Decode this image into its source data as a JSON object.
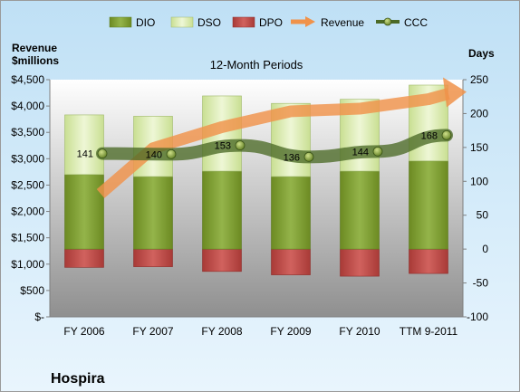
{
  "company_label": "Hospira",
  "chart_data": {
    "type": "bar",
    "title": "12-Month Periods",
    "left_axis_label": "Revenue\n$millions",
    "right_axis_label": "Days",
    "categories": [
      "FY 2006",
      "FY 2007",
      "FY 2008",
      "FY 2009",
      "FY 2010",
      "TTM 9-2011"
    ],
    "left_axis": {
      "min": 0,
      "max": 4500,
      "step": 500,
      "tick_labels": [
        "$-",
        "$500",
        "$1,000",
        "$1,500",
        "$2,000",
        "$2,500",
        "$3,000",
        "$3,500",
        "$4,000",
        "$4,500"
      ]
    },
    "right_axis": {
      "min": -100,
      "max": 250,
      "step": 50,
      "tick_labels": [
        "-100",
        "-50",
        "0",
        "50",
        "100",
        "150",
        "200",
        "250"
      ]
    },
    "series": [
      {
        "name": "DIO",
        "axis": "days",
        "kind": "bar",
        "color": "#7a9a2c",
        "values": [
          110,
          107,
          115,
          107,
          115,
          130
        ]
      },
      {
        "name": "DSO",
        "axis": "days",
        "kind": "bar-stacked",
        "color": "#d7eaa8",
        "values": [
          88,
          89,
          111,
          108,
          106,
          112
        ]
      },
      {
        "name": "DPO",
        "axis": "days",
        "kind": "bar-negative",
        "color": "#c0504d",
        "values": [
          -27,
          -26,
          -33,
          -38,
          -40,
          -36
        ]
      },
      {
        "name": "Revenue",
        "axis": "revenue",
        "kind": "arrow-line",
        "color": "#f0924a",
        "values": [
          2680,
          3200,
          3600,
          3900,
          3950,
          4130
        ]
      },
      {
        "name": "CCC",
        "axis": "days",
        "kind": "line",
        "color": "#4c6a26",
        "values": [
          141,
          140,
          153,
          136,
          144,
          168
        ]
      }
    ],
    "ccc_labels": [
      "141",
      "140",
      "153",
      "136",
      "144",
      "168"
    ],
    "legend_position": "top",
    "grid": false
  }
}
